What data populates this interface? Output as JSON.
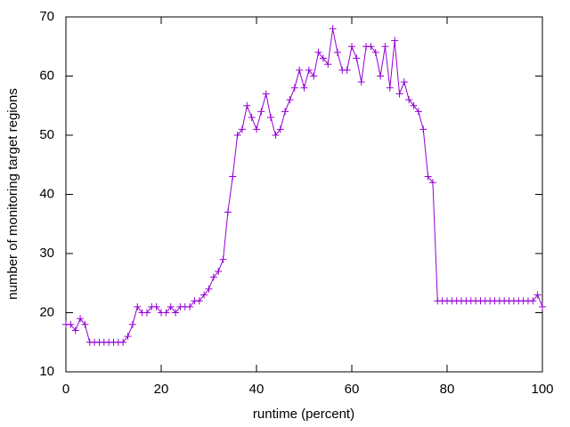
{
  "chart_data": {
    "type": "line",
    "xlabel": "runtime (percent)",
    "ylabel": "number of monitoring target regions",
    "x": [
      0,
      1,
      2,
      3,
      4,
      5,
      6,
      7,
      8,
      9,
      10,
      11,
      12,
      13,
      14,
      15,
      16,
      17,
      18,
      19,
      20,
      21,
      22,
      23,
      24,
      25,
      26,
      27,
      28,
      29,
      30,
      31,
      32,
      33,
      34,
      35,
      36,
      37,
      38,
      39,
      40,
      41,
      42,
      43,
      44,
      45,
      46,
      47,
      48,
      49,
      50,
      51,
      52,
      53,
      54,
      55,
      56,
      57,
      58,
      59,
      60,
      61,
      62,
      63,
      64,
      65,
      66,
      67,
      68,
      69,
      70,
      71,
      72,
      73,
      74,
      75,
      76,
      77,
      78,
      79,
      80,
      81,
      82,
      83,
      84,
      85,
      86,
      87,
      88,
      89,
      90,
      91,
      92,
      93,
      94,
      95,
      96,
      97,
      98,
      99,
      100
    ],
    "values": [
      18,
      18,
      17,
      19,
      18,
      15,
      15,
      15,
      15,
      15,
      15,
      15,
      15,
      16,
      18,
      21,
      20,
      20,
      21,
      21,
      20,
      20,
      21,
      20,
      21,
      21,
      21,
      22,
      22,
      23,
      24,
      26,
      27,
      29,
      37,
      43,
      50,
      51,
      55,
      53,
      51,
      54,
      57,
      53,
      50,
      51,
      54,
      56,
      58,
      61,
      58,
      61,
      60,
      64,
      63,
      62,
      68,
      64,
      61,
      61,
      65,
      63,
      59,
      65,
      65,
      64,
      60,
      65,
      58,
      66,
      57,
      59,
      56,
      55,
      54,
      51,
      43,
      42,
      22,
      22,
      22,
      22,
      22,
      22,
      22,
      22,
      22,
      22,
      22,
      22,
      22,
      22,
      22,
      22,
      22,
      22,
      22,
      22,
      22,
      23,
      21
    ],
    "color": "#9400d3",
    "xlim": [
      0,
      100
    ],
    "xticks": [
      0,
      20,
      40,
      60,
      80,
      100
    ],
    "ylim": [
      10,
      70
    ],
    "yticks": [
      10,
      20,
      30,
      40,
      50,
      60,
      70
    ],
    "grid": false
  }
}
